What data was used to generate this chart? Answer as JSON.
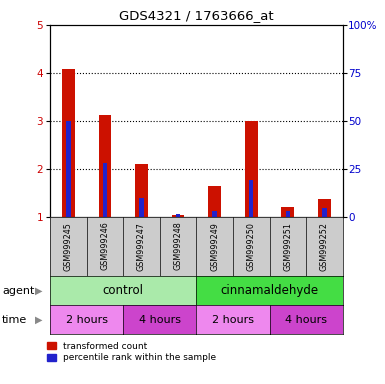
{
  "title": "GDS4321 / 1763666_at",
  "samples": [
    "GSM999245",
    "GSM999246",
    "GSM999247",
    "GSM999248",
    "GSM999249",
    "GSM999250",
    "GSM999251",
    "GSM999252"
  ],
  "red_values": [
    4.08,
    3.12,
    2.1,
    1.05,
    1.65,
    3.0,
    1.2,
    1.38
  ],
  "blue_values": [
    3.0,
    2.12,
    1.4,
    1.07,
    1.12,
    1.78,
    1.12,
    1.18
  ],
  "ylim": [
    1,
    5
  ],
  "yticks_left": [
    1,
    2,
    3,
    4,
    5
  ],
  "yticks_right_labels": [
    "0",
    "25",
    "50",
    "75",
    "100%"
  ],
  "ylabel_left_color": "#cc0000",
  "ylabel_right_color": "#0000cc",
  "red_color": "#cc1100",
  "blue_color": "#2222cc",
  "agent_control_color": "#aaeaaa",
  "agent_cinnam_color": "#44dd44",
  "time_2h_color": "#ee88ee",
  "time_4h_color": "#cc44cc",
  "sample_bg_color": "#cccccc",
  "agent_label": "agent",
  "time_label": "time",
  "control_label": "control",
  "cinnam_label": "cinnamaldehyde",
  "time_labels": [
    "2 hours",
    "4 hours",
    "2 hours",
    "4 hours"
  ],
  "legend_red": "transformed count",
  "legend_blue": "percentile rank within the sample"
}
